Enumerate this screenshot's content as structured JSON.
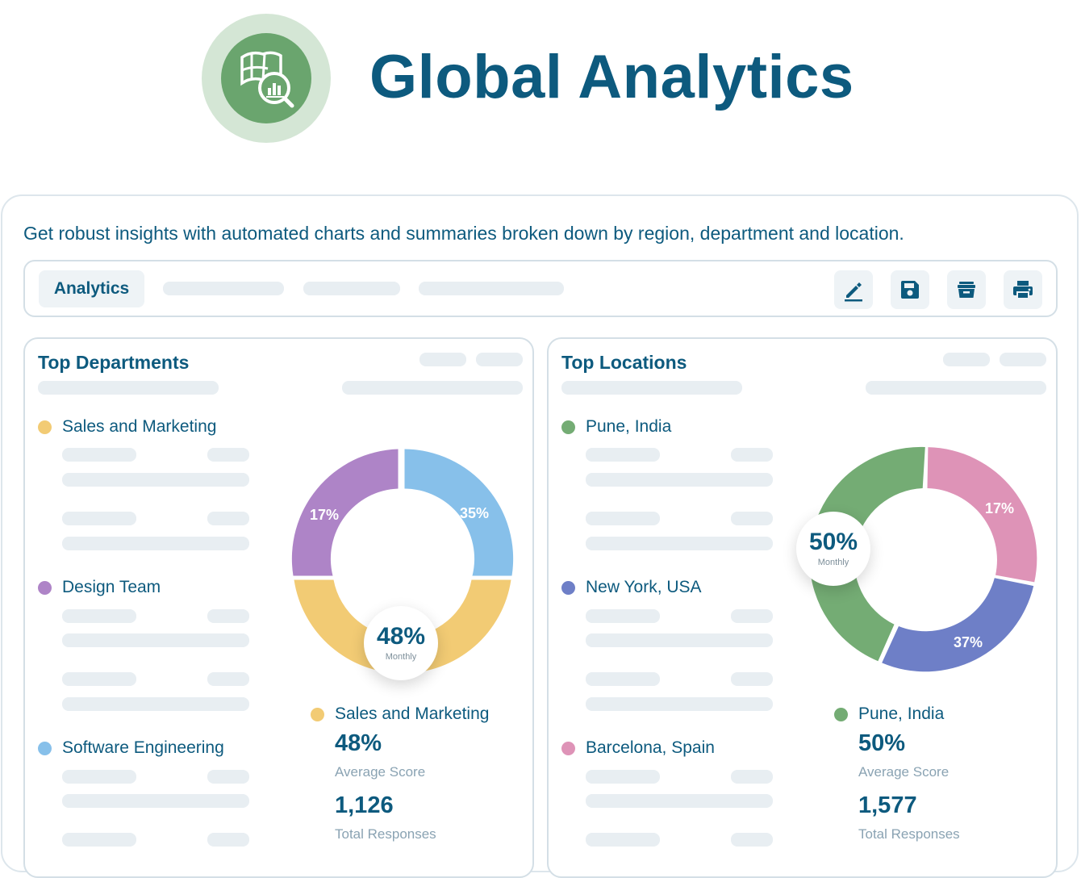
{
  "header": {
    "title": "Global Analytics"
  },
  "tagline": "Get robust insights with automated charts and summaries broken down by region, department and location.",
  "toolbar": {
    "active_tab": "Analytics",
    "icons": [
      "edit-icon",
      "save-icon",
      "archive-icon",
      "print-icon"
    ]
  },
  "departments": {
    "title": "Top Departments",
    "legend": [
      {
        "label": "Sales and Marketing",
        "color": "#f2cb74"
      },
      {
        "label": "Design Team",
        "color": "#ae84c7"
      },
      {
        "label": "Software Engineering",
        "color": "#87c0ea"
      }
    ],
    "donut": {
      "center_value": "48%",
      "center_label": "Monthly",
      "segments": [
        {
          "label": "35%",
          "value": 35,
          "color": "#87c0ea"
        },
        {
          "label": "48%",
          "value": 48,
          "color": "#f2cb74"
        },
        {
          "label": "17%",
          "value": 17,
          "color": "#ae84c7"
        }
      ]
    },
    "summary": {
      "name": "Sales and Marketing",
      "score": "48%",
      "score_label": "Average Score",
      "responses": "1,126",
      "responses_label": "Total Responses"
    }
  },
  "locations": {
    "title": "Top Locations",
    "legend": [
      {
        "label": "Pune, India",
        "color": "#74ac74"
      },
      {
        "label": "New York, USA",
        "color": "#6e7fc7"
      },
      {
        "label": "Barcelona, Spain",
        "color": "#de93b7"
      }
    ],
    "donut": {
      "center_value": "50%",
      "center_label": "Monthly",
      "segments": [
        {
          "label": "17%",
          "value": 17,
          "color": "#de93b7"
        },
        {
          "label": "37%",
          "value": 37,
          "color": "#6e7fc7"
        },
        {
          "label": "50%",
          "value": 50,
          "color": "#74ac74"
        }
      ]
    },
    "summary": {
      "name": "Pune, India",
      "score": "50%",
      "score_label": "Average Score",
      "responses": "1,577",
      "responses_label": "Total Responses"
    }
  }
}
